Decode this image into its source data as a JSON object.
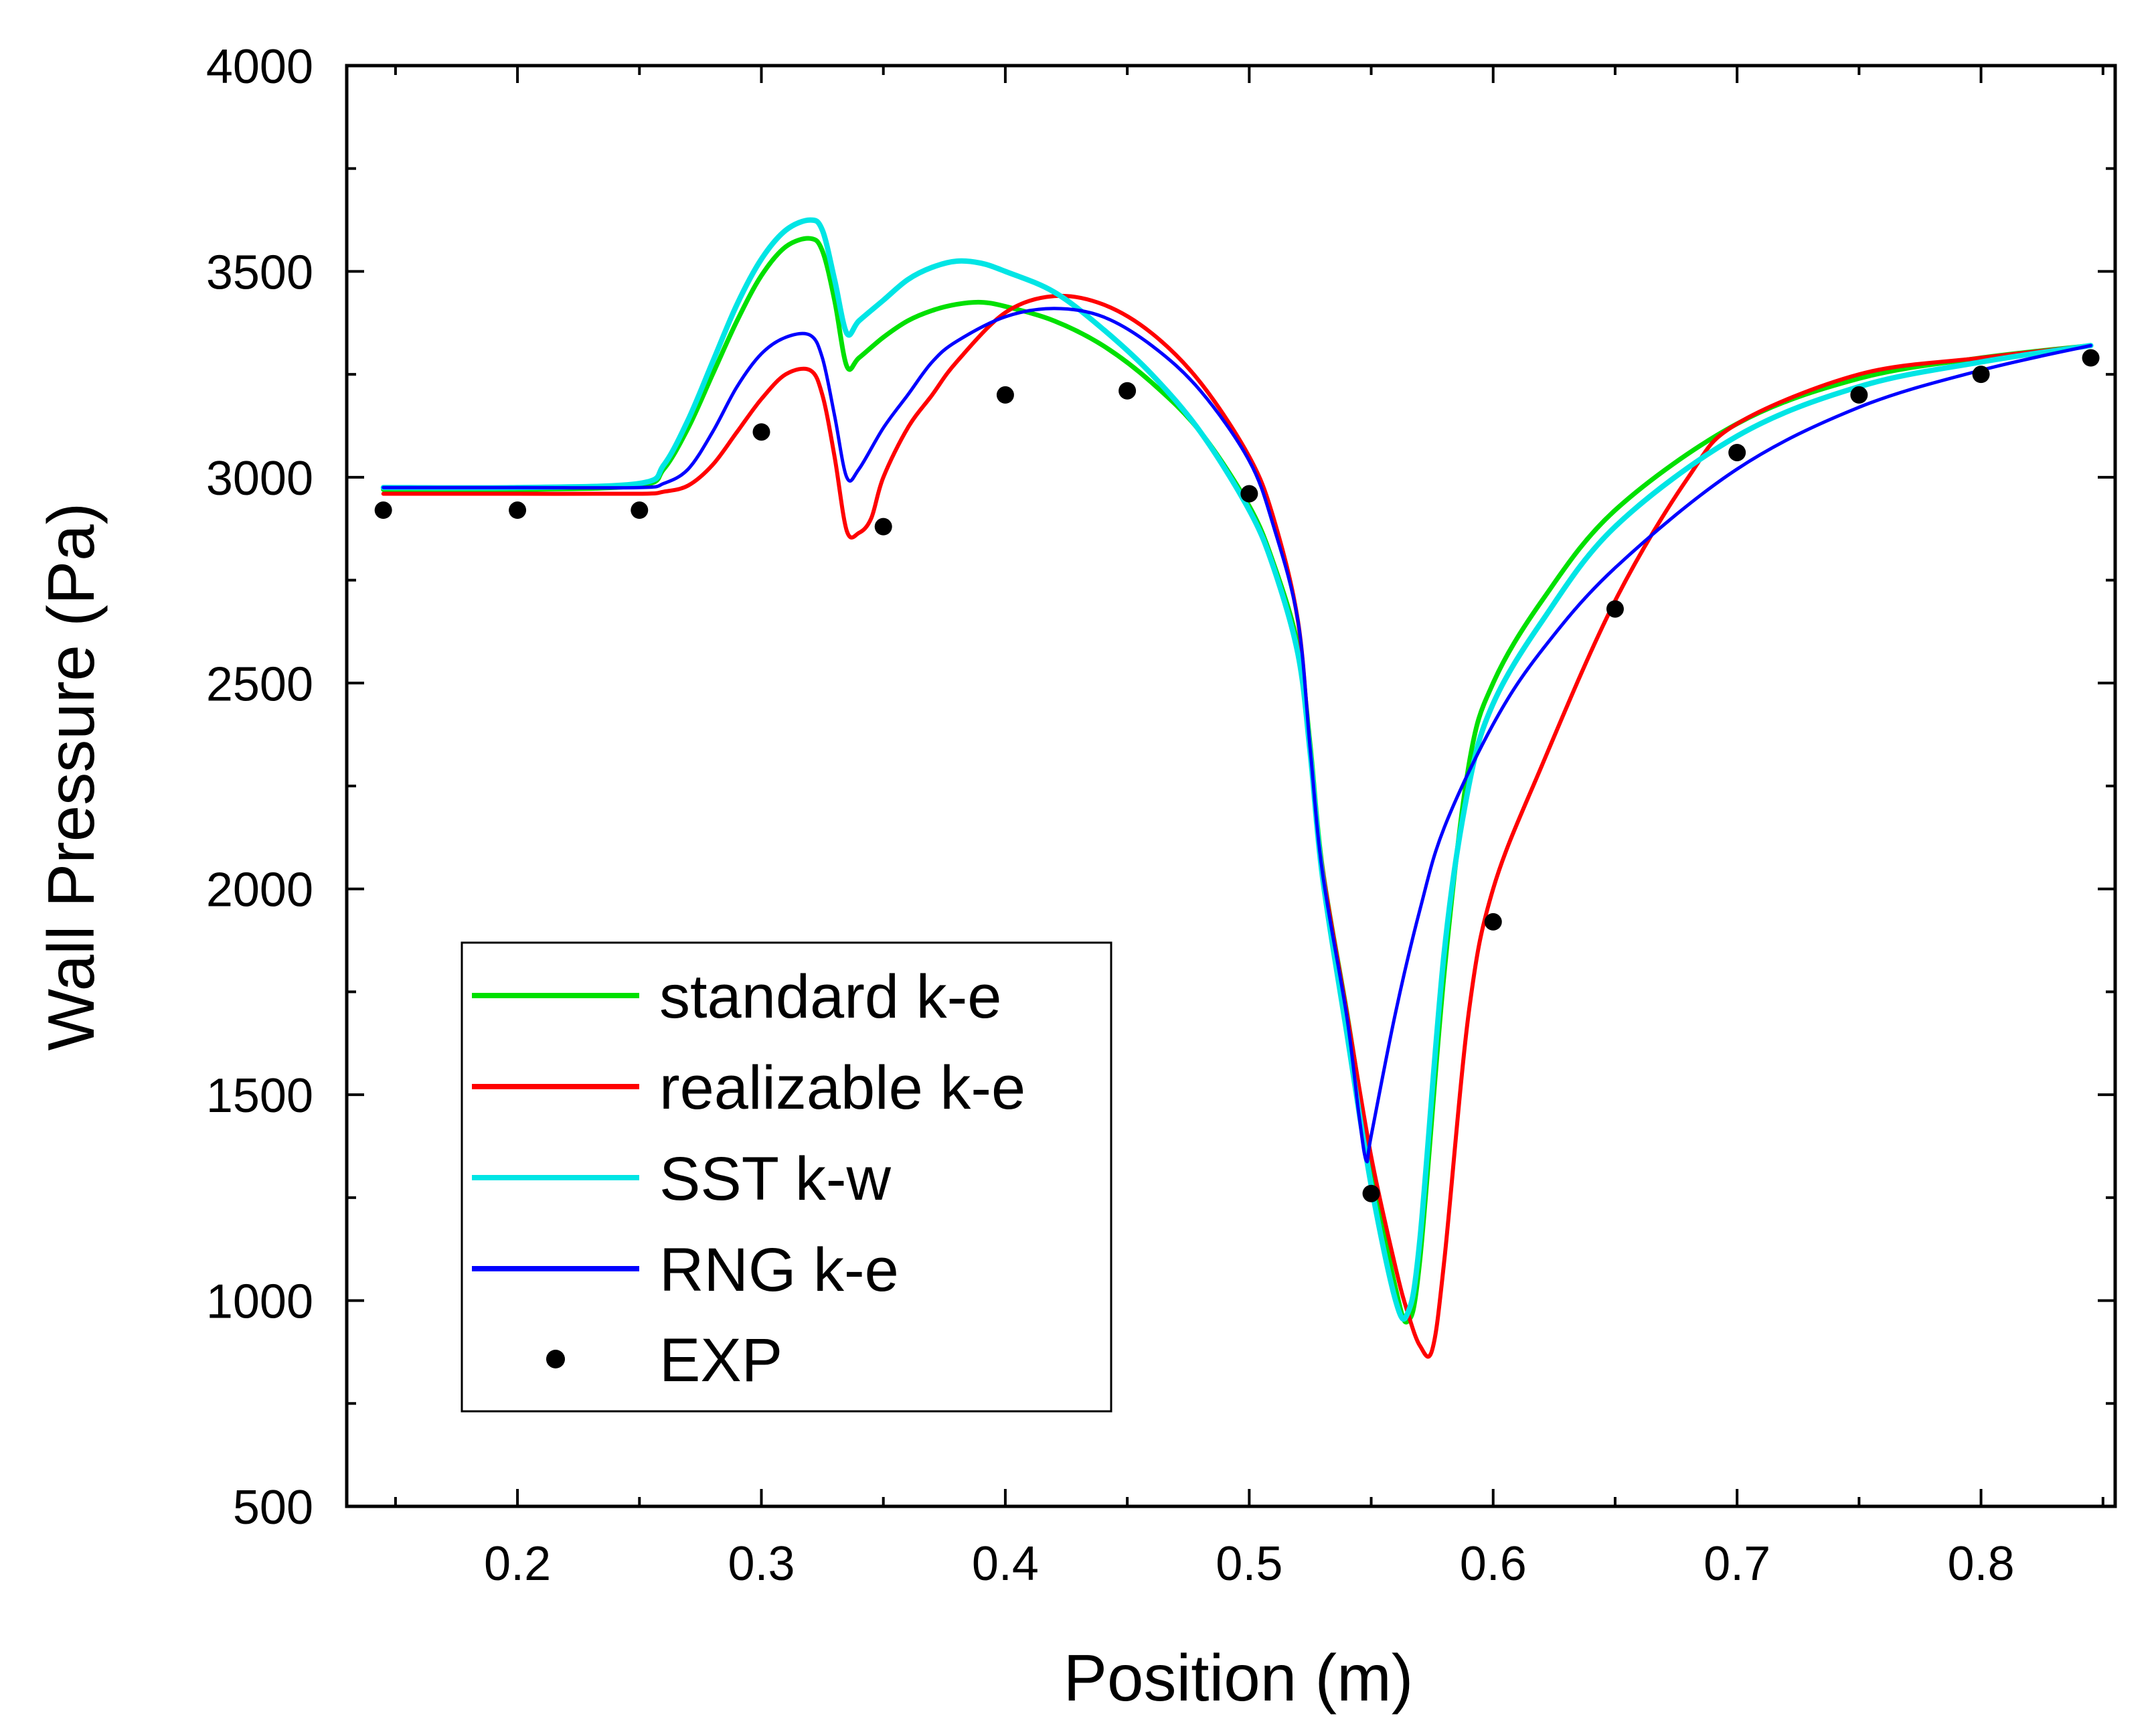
{
  "chart_data": {
    "type": "line",
    "title": "",
    "xlabel": "Position (m)",
    "ylabel": "Wall Pressure (Pa)",
    "xlim": [
      0.13,
      0.855
    ],
    "ylim": [
      500,
      4000
    ],
    "xticks": [
      0.2,
      0.3,
      0.4,
      0.5,
      0.6,
      0.7,
      0.8
    ],
    "xtick_labels": [
      "0.2",
      "0.3",
      "0.4",
      "0.5",
      "0.6",
      "0.7",
      "0.8"
    ],
    "yticks": [
      500,
      1000,
      1500,
      2000,
      2500,
      3000,
      3500,
      4000
    ],
    "ytick_labels": [
      "500",
      "1000",
      "1500",
      "2000",
      "2500",
      "3000",
      "3500",
      "4000"
    ],
    "legend_position": "bottom-left",
    "series": [
      {
        "name": "standard k-e",
        "color": "#00e000",
        "style": "line",
        "x": [
          0.145,
          0.2,
          0.25,
          0.26,
          0.27,
          0.28,
          0.29,
          0.3,
          0.31,
          0.32,
          0.325,
          0.33,
          0.335,
          0.34,
          0.35,
          0.36,
          0.37,
          0.38,
          0.39,
          0.4,
          0.42,
          0.44,
          0.46,
          0.48,
          0.5,
          0.51,
          0.52,
          0.525,
          0.53,
          0.54,
          0.55,
          0.56,
          0.565,
          0.57,
          0.58,
          0.59,
          0.6,
          0.62,
          0.65,
          0.7,
          0.75,
          0.8,
          0.845
        ],
        "y": [
          2970,
          2970,
          2980,
          3020,
          3120,
          3250,
          3380,
          3490,
          3560,
          3580,
          3550,
          3430,
          3270,
          3290,
          3340,
          3380,
          3405,
          3420,
          3425,
          3415,
          3380,
          3320,
          3230,
          3110,
          2930,
          2790,
          2590,
          2350,
          2050,
          1700,
          1330,
          1030,
          950,
          1100,
          1800,
          2300,
          2500,
          2700,
          2920,
          3130,
          3240,
          3290,
          3320
        ]
      },
      {
        "name": "realizable k-e",
        "color": "#ff0000",
        "style": "line",
        "x": [
          0.145,
          0.2,
          0.25,
          0.26,
          0.27,
          0.28,
          0.29,
          0.3,
          0.31,
          0.32,
          0.325,
          0.33,
          0.335,
          0.34,
          0.345,
          0.35,
          0.36,
          0.37,
          0.38,
          0.4,
          0.42,
          0.44,
          0.46,
          0.48,
          0.5,
          0.51,
          0.52,
          0.525,
          0.53,
          0.54,
          0.55,
          0.56,
          0.565,
          0.57,
          0.575,
          0.58,
          0.59,
          0.6,
          0.62,
          0.65,
          0.68,
          0.7,
          0.75,
          0.8,
          0.845
        ],
        "y": [
          2960,
          2960,
          2960,
          2965,
          2980,
          3030,
          3110,
          3190,
          3250,
          3260,
          3200,
          3050,
          2870,
          2865,
          2900,
          3000,
          3120,
          3200,
          3280,
          3400,
          3440,
          3420,
          3350,
          3230,
          3050,
          2900,
          2650,
          2330,
          2050,
          1700,
          1350,
          1080,
          970,
          890,
          880,
          1100,
          1700,
          2000,
          2300,
          2700,
          3000,
          3130,
          3250,
          3290,
          3320
        ]
      },
      {
        "name": "SST k-w",
        "color": "#00e5e5",
        "style": "line",
        "x": [
          0.145,
          0.2,
          0.25,
          0.26,
          0.27,
          0.28,
          0.29,
          0.3,
          0.31,
          0.32,
          0.325,
          0.33,
          0.335,
          0.34,
          0.35,
          0.36,
          0.37,
          0.38,
          0.39,
          0.4,
          0.42,
          0.44,
          0.46,
          0.48,
          0.5,
          0.51,
          0.52,
          0.525,
          0.53,
          0.54,
          0.55,
          0.56,
          0.565,
          0.57,
          0.58,
          0.59,
          0.6,
          0.62,
          0.65,
          0.7,
          0.75,
          0.8,
          0.845
        ],
        "y": [
          2975,
          2975,
          2985,
          3030,
          3140,
          3280,
          3420,
          3530,
          3600,
          3625,
          3600,
          3480,
          3350,
          3380,
          3430,
          3480,
          3510,
          3525,
          3520,
          3500,
          3450,
          3360,
          3250,
          3110,
          2920,
          2780,
          2570,
          2330,
          2030,
          1650,
          1280,
          1000,
          970,
          1150,
          1850,
          2250,
          2450,
          2650,
          2880,
          3100,
          3220,
          3280,
          3320
        ]
      },
      {
        "name": "RNG k-e",
        "color": "#0000ff",
        "style": "line",
        "x": [
          0.145,
          0.2,
          0.25,
          0.26,
          0.27,
          0.28,
          0.29,
          0.3,
          0.31,
          0.32,
          0.325,
          0.33,
          0.335,
          0.34,
          0.35,
          0.36,
          0.37,
          0.38,
          0.4,
          0.42,
          0.44,
          0.46,
          0.48,
          0.5,
          0.51,
          0.52,
          0.525,
          0.53,
          0.54,
          0.545,
          0.548,
          0.55,
          0.56,
          0.57,
          0.58,
          0.6,
          0.62,
          0.65,
          0.7,
          0.75,
          0.8,
          0.845
        ],
        "y": [
          2975,
          2975,
          2975,
          2985,
          3020,
          3110,
          3220,
          3300,
          3340,
          3345,
          3290,
          3150,
          3000,
          3020,
          3120,
          3200,
          3280,
          3330,
          3390,
          3410,
          3390,
          3320,
          3210,
          3040,
          2880,
          2650,
          2340,
          2040,
          1690,
          1450,
          1340,
          1400,
          1700,
          1950,
          2150,
          2400,
          2580,
          2780,
          3020,
          3170,
          3260,
          3320
        ]
      },
      {
        "name": "EXP",
        "color": "#000000",
        "style": "markers",
        "x": [
          0.145,
          0.2,
          0.25,
          0.3,
          0.35,
          0.4,
          0.45,
          0.5,
          0.55,
          0.6,
          0.65,
          0.7,
          0.75,
          0.8,
          0.845
        ],
        "y": [
          2920,
          2920,
          2920,
          3110,
          2880,
          3200,
          3210,
          2960,
          1260,
          1920,
          2680,
          3060,
          3200,
          3250,
          3290
        ]
      }
    ]
  }
}
